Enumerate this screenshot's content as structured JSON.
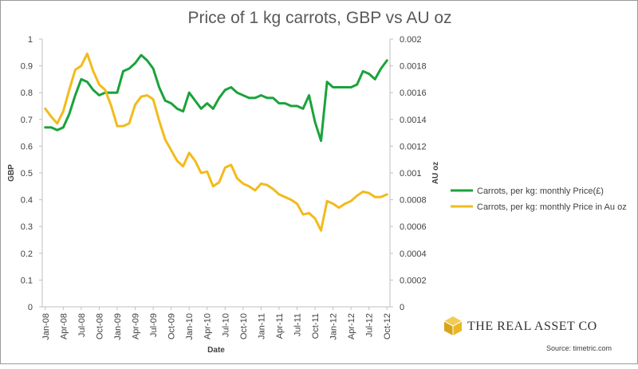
{
  "chart_data": {
    "type": "line",
    "title": "Price of 1 kg carrots, GBP vs AU oz",
    "xlabel": "Date",
    "ylabel": "GBP",
    "y2label": "AU oz",
    "ylim": [
      0,
      1
    ],
    "y2lim": [
      0,
      0.002
    ],
    "yticks": [
      "0",
      "0.1",
      "0.2",
      "0.3",
      "0.4",
      "0.5",
      "0.6",
      "0.7",
      "0.8",
      "0.9",
      "1"
    ],
    "y2ticks": [
      "0",
      "0.0002",
      "0.0004",
      "0.0006",
      "0.0008",
      "0.001",
      "0.0012",
      "0.0014",
      "0.0016",
      "0.0018",
      "0.002"
    ],
    "x": [
      "Jan-08",
      "Feb-08",
      "Mar-08",
      "Apr-08",
      "May-08",
      "Jun-08",
      "Jul-08",
      "Aug-08",
      "Sep-08",
      "Oct-08",
      "Nov-08",
      "Dec-08",
      "Jan-09",
      "Feb-09",
      "Mar-09",
      "Apr-09",
      "May-09",
      "Jun-09",
      "Jul-09",
      "Aug-09",
      "Sep-09",
      "Oct-09",
      "Nov-09",
      "Dec-09",
      "Jan-10",
      "Feb-10",
      "Mar-10",
      "Apr-10",
      "May-10",
      "Jun-10",
      "Jul-10",
      "Aug-10",
      "Sep-10",
      "Oct-10",
      "Nov-10",
      "Dec-10",
      "Jan-11",
      "Feb-11",
      "Mar-11",
      "Apr-11",
      "May-11",
      "Jun-11",
      "Jul-11",
      "Aug-11",
      "Sep-11",
      "Oct-11",
      "Nov-11",
      "Dec-11",
      "Jan-12",
      "Feb-12",
      "Mar-12",
      "Apr-12",
      "May-12",
      "Jun-12",
      "Jul-12",
      "Aug-12",
      "Sep-12",
      "Oct-12"
    ],
    "xtick_labels": [
      "Jan-08",
      "Apr-08",
      "Jul-08",
      "Oct-08",
      "Jan-09",
      "Apr-09",
      "Jul-09",
      "Oct-09",
      "Jan-10",
      "Apr-10",
      "Jul-10",
      "Oct-10",
      "Jan-11",
      "Apr-11",
      "Jul-11",
      "Oct-11",
      "Jan-12",
      "Apr-12",
      "Jul-12",
      "Oct-12"
    ],
    "series": [
      {
        "name": "Carrots, per kg: monthly Price(£)",
        "color": "#1aa33b",
        "axis": "left",
        "values": [
          0.67,
          0.67,
          0.66,
          0.67,
          0.72,
          0.79,
          0.85,
          0.84,
          0.81,
          0.79,
          0.8,
          0.8,
          0.8,
          0.88,
          0.89,
          0.91,
          0.94,
          0.92,
          0.89,
          0.82,
          0.77,
          0.76,
          0.74,
          0.73,
          0.8,
          0.77,
          0.74,
          0.76,
          0.74,
          0.78,
          0.81,
          0.82,
          0.8,
          0.79,
          0.78,
          0.78,
          0.79,
          0.78,
          0.78,
          0.76,
          0.76,
          0.75,
          0.75,
          0.74,
          0.79,
          0.69,
          0.62,
          0.84,
          0.82,
          0.82,
          0.82,
          0.82,
          0.83,
          0.88,
          0.87,
          0.85,
          0.89,
          0.92
        ]
      },
      {
        "name": "Carrots, per kg: monthly Price in Au oz",
        "color": "#f2bb1c",
        "axis": "right",
        "values": [
          0.00148,
          0.00142,
          0.00137,
          0.00146,
          0.00162,
          0.00177,
          0.0018,
          0.00189,
          0.00176,
          0.00166,
          0.00162,
          0.0015,
          0.00135,
          0.00135,
          0.00137,
          0.00151,
          0.00157,
          0.00158,
          0.00155,
          0.00139,
          0.00125,
          0.00117,
          0.00109,
          0.00105,
          0.00115,
          0.00109,
          0.001,
          0.00101,
          0.0009,
          0.00093,
          0.00104,
          0.00106,
          0.00096,
          0.00092,
          0.0009,
          0.00087,
          0.00092,
          0.00091,
          0.00088,
          0.00084,
          0.00082,
          0.0008,
          0.00077,
          0.00069,
          0.0007,
          0.00066,
          0.00057,
          0.00079,
          0.00077,
          0.00074,
          0.00077,
          0.00079,
          0.00083,
          0.00086,
          0.00085,
          0.00082,
          0.00082,
          0.00084
        ]
      }
    ],
    "legend_position": "right"
  },
  "branding": {
    "company": "The Real Asset Co",
    "source": "Source: timetric.com",
    "logo_color": "#e8b828"
  }
}
